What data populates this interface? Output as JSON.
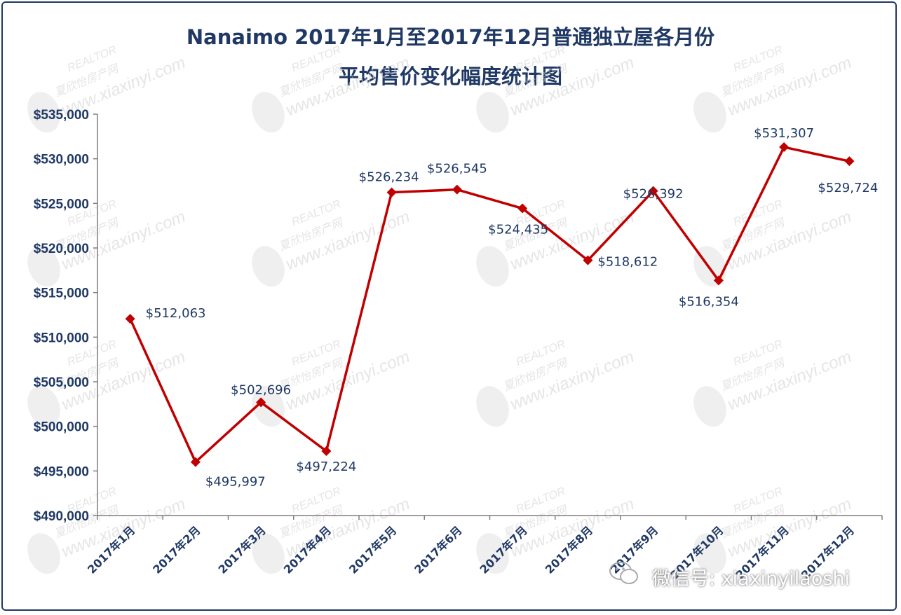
{
  "chart_data": {
    "type": "line",
    "title": "Nanaimo 2017年1月至2017年12月普通独立屋各月份",
    "subtitle": "平均售价变化幅度统计图",
    "categories": [
      "2017年1月",
      "2017年2月",
      "2017年3月",
      "2017年4月",
      "2017年5月",
      "2017年6月",
      "2017年7月",
      "2017年8月",
      "2017年9月",
      "2017年10月",
      "2017年11月",
      "2017年12月"
    ],
    "values": [
      512063,
      495997,
      502696,
      497224,
      526234,
      526545,
      524435,
      518612,
      526392,
      516354,
      531307,
      529724
    ],
    "data_labels": [
      "$512,063",
      "$495,997",
      "$502,696",
      "$497,224",
      "$526,234",
      "$526,545",
      "$524,435",
      "$518,612",
      "$526,392",
      "$516,354",
      "$531,307",
      "$529,724"
    ],
    "y_ticks": [
      "$490,000",
      "$495,000",
      "$500,000",
      "$505,000",
      "$510,000",
      "$515,000",
      "$520,000",
      "$525,000",
      "$530,000",
      "$535,000"
    ],
    "ylim": [
      490000,
      535000
    ],
    "xlabel": "",
    "ylabel": "",
    "grid": false,
    "legend": "none",
    "line_color": "#c00000",
    "marker": "diamond"
  },
  "colors": {
    "title": "#1f3864",
    "axis_text": "#1f3864",
    "border": "#1f3864",
    "watermark": "#d0d0d0"
  },
  "watermark": {
    "brand": "REALTOR",
    "cn_name": "夏欣怡房产网",
    "site": "www.xiaxinyi.com",
    "icon": "portrait-icon"
  },
  "wechat": {
    "label": "微信号: xiaxinyilaoshi",
    "icon": "wechat-icon"
  }
}
